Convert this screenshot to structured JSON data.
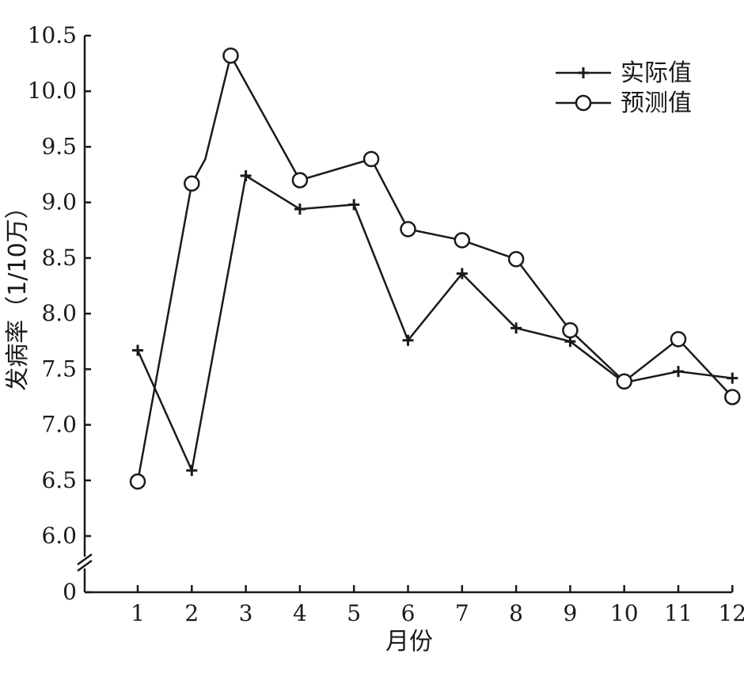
{
  "chart_data": {
    "type": "line",
    "xlabel": "月份",
    "ylabel": "发病率（1/10万）",
    "categories": [
      "1",
      "2",
      "3",
      "4",
      "5",
      "6",
      "7",
      "8",
      "9",
      "10",
      "11",
      "12"
    ],
    "x": [
      1,
      2,
      3,
      4,
      5,
      6,
      7,
      8,
      9,
      10,
      11,
      12
    ],
    "y_ticks": [
      "6.0",
      "6.5",
      "7.0",
      "7.5",
      "8.0",
      "8.5",
      "9.0",
      "9.5",
      "10.0",
      "10.5"
    ],
    "y_zero_label": "0",
    "ylim": [
      6.0,
      10.5
    ],
    "axis_break": true,
    "legend_position": "top-right",
    "series": [
      {
        "name": "实际值",
        "marker": "plus",
        "points": [
          {
            "x": 1,
            "y": 7.67
          },
          {
            "x": 2,
            "y": 6.59
          },
          {
            "x": 3,
            "y": 9.24
          },
          {
            "x": 4,
            "y": 8.94
          },
          {
            "x": 5,
            "y": 8.98
          },
          {
            "x": 6,
            "y": 7.76
          },
          {
            "x": 7,
            "y": 8.36
          },
          {
            "x": 8,
            "y": 7.87
          },
          {
            "x": 9,
            "y": 7.75
          },
          {
            "x": 10,
            "y": 7.38
          },
          {
            "x": 11,
            "y": 7.48
          },
          {
            "x": 12,
            "y": 7.42
          }
        ]
      },
      {
        "name": "预测值",
        "marker": "circle",
        "points": [
          {
            "x": 1,
            "y": 6.49
          },
          {
            "x": 2,
            "y": 9.17
          },
          {
            "x": 2.25,
            "y": 9.39
          },
          {
            "x": 2.72,
            "y": 10.32
          },
          {
            "x": 4,
            "y": 9.2
          },
          {
            "x": 5.32,
            "y": 9.39
          },
          {
            "x": 6,
            "y": 8.76
          },
          {
            "x": 7,
            "y": 8.66
          },
          {
            "x": 8,
            "y": 8.49
          },
          {
            "x": 9,
            "y": 7.85
          },
          {
            "x": 10,
            "y": 7.39
          },
          {
            "x": 11,
            "y": 7.77
          },
          {
            "x": 12,
            "y": 7.25
          }
        ]
      }
    ],
    "marker_indices": {
      "实际值": [
        0,
        1,
        2,
        3,
        4,
        5,
        6,
        7,
        8,
        9,
        10,
        11
      ],
      "预测值": [
        0,
        1,
        3,
        4,
        5,
        6,
        7,
        8,
        9,
        10,
        11,
        12
      ]
    }
  }
}
